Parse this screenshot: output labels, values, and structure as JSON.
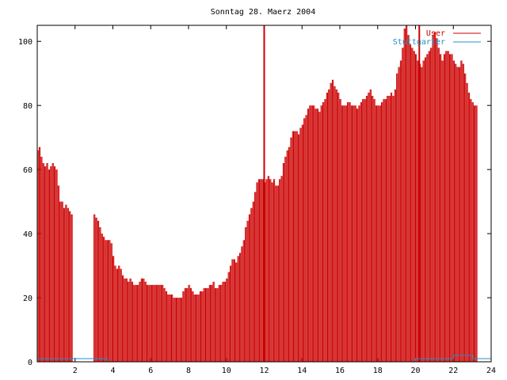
{
  "chart_data": {
    "type": "bar",
    "title": "Sonntag 28. Maerz 2004",
    "xlabel": "",
    "ylabel": "",
    "xlim": [
      0,
      24
    ],
    "ylim": [
      0,
      105
    ],
    "x_ticks": [
      "2",
      "4",
      "6",
      "8",
      "10",
      "12",
      "14",
      "16",
      "18",
      "20",
      "22",
      "24"
    ],
    "y_ticks": [
      "0",
      "20",
      "40",
      "60",
      "80",
      "100"
    ],
    "grid": false,
    "legend_position": "top-right",
    "colors": {
      "User": "#cc0000",
      "Stuttgarter": "#1e90c8"
    },
    "series": [
      {
        "name": "User",
        "style": "impulses",
        "x_start": 0,
        "x_step": 0.1,
        "values": [
          66,
          67,
          64,
          62,
          61,
          62,
          60,
          61,
          62,
          61,
          60,
          55,
          50,
          50,
          48,
          49,
          48,
          47,
          46,
          0,
          0,
          0,
          0,
          0,
          0,
          0,
          0,
          0,
          0,
          0,
          46,
          45,
          44,
          42,
          40,
          39,
          38,
          38,
          38,
          37,
          33,
          30,
          29,
          30,
          29,
          27,
          26,
          26,
          25,
          26,
          25,
          24,
          24,
          24,
          25,
          26,
          26,
          25,
          24,
          24,
          24,
          24,
          24,
          24,
          24,
          24,
          24,
          23,
          22,
          21,
          21,
          21,
          20,
          20,
          20,
          20,
          20,
          22,
          23,
          23,
          24,
          23,
          22,
          21,
          21,
          21,
          22,
          22,
          23,
          23,
          23,
          24,
          24,
          25,
          23,
          23,
          24,
          24,
          25,
          25,
          26,
          28,
          30,
          32,
          32,
          31,
          33,
          34,
          36,
          38,
          42,
          44,
          46,
          48,
          50,
          53,
          56,
          57,
          57,
          57,
          56,
          57,
          58,
          57,
          56,
          57,
          55,
          55,
          57,
          58,
          62,
          64,
          66,
          67,
          70,
          72,
          72,
          72,
          71,
          73,
          74,
          76,
          77,
          79,
          80,
          80,
          80,
          79,
          79,
          78,
          80,
          81,
          82,
          84,
          85,
          87,
          88,
          86,
          85,
          84,
          82,
          80,
          80,
          80,
          81,
          81,
          80,
          80,
          80,
          79,
          80,
          81,
          82,
          82,
          83,
          84,
          85,
          83,
          82,
          80,
          80,
          80,
          81,
          82,
          82,
          83,
          83,
          84,
          83,
          85,
          90,
          92,
          94,
          98,
          104,
          105,
          102,
          99,
          98,
          97,
          96,
          94,
          93,
          92,
          94,
          95,
          96,
          97,
          98,
          102,
          103,
          101,
          98,
          96,
          94,
          96,
          97,
          97,
          96,
          96,
          94,
          93,
          92,
          92,
          94,
          93,
          90,
          87,
          84,
          82,
          81,
          80,
          80
        ]
      },
      {
        "name": "Stuttgarter",
        "style": "steps",
        "points": [
          [
            0,
            1
          ],
          [
            2,
            1
          ],
          [
            3.7,
            0
          ],
          [
            19,
            0
          ],
          [
            20,
            1
          ],
          [
            21,
            1
          ],
          [
            22,
            2
          ],
          [
            23,
            1
          ],
          [
            24,
            1
          ]
        ]
      }
    ],
    "highlight_x": [
      12,
      20.2
    ]
  }
}
